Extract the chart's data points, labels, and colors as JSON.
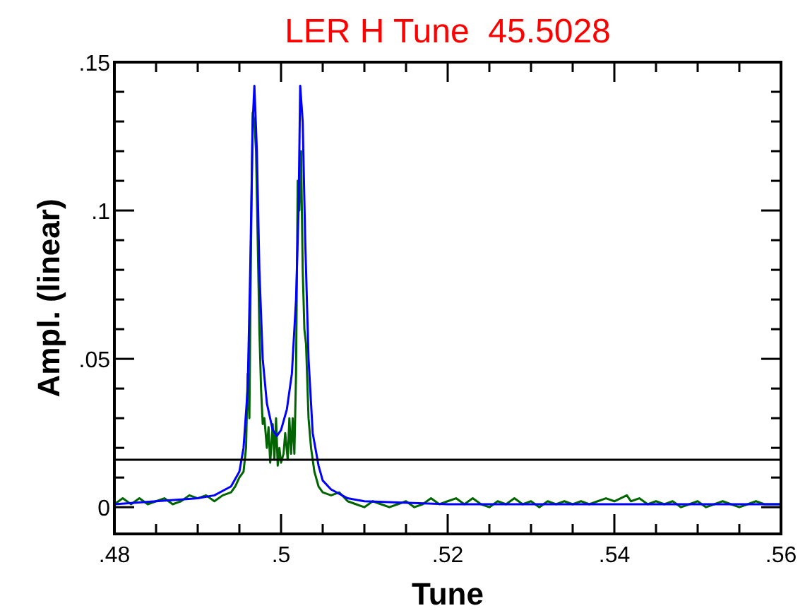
{
  "chart_data": {
    "type": "line",
    "title": "LER H Tune  45.5028",
    "xlabel": "Tune",
    "ylabel": "Ampl. (linear)",
    "xlim": [
      0.48,
      0.56
    ],
    "ylim": [
      -0.009,
      0.15
    ],
    "xticks": [
      {
        "value": 0.48,
        "label": ".48"
      },
      {
        "value": 0.485,
        "label": null
      },
      {
        "value": 0.49,
        "label": null
      },
      {
        "value": 0.495,
        "label": null
      },
      {
        "value": 0.5,
        "label": ".5"
      },
      {
        "value": 0.505,
        "label": null
      },
      {
        "value": 0.51,
        "label": null
      },
      {
        "value": 0.515,
        "label": null
      },
      {
        "value": 0.52,
        "label": ".52"
      },
      {
        "value": 0.525,
        "label": null
      },
      {
        "value": 0.53,
        "label": null
      },
      {
        "value": 0.535,
        "label": null
      },
      {
        "value": 0.54,
        "label": ".54"
      },
      {
        "value": 0.545,
        "label": null
      },
      {
        "value": 0.55,
        "label": null
      },
      {
        "value": 0.555,
        "label": null
      },
      {
        "value": 0.56,
        "label": ".56"
      }
    ],
    "yticks": [
      0,
      {
        "value": 0.01,
        "label": null
      },
      {
        "value": 0.02,
        "label": null
      },
      {
        "value": 0.03,
        "label": null
      },
      {
        "value": 0.04,
        "label": null
      },
      {
        "value": 0.05,
        "label": ".05"
      },
      {
        "value": 0.06,
        "label": null
      },
      {
        "value": 0.07,
        "label": null
      },
      {
        "value": 0.08,
        "label": null
      },
      {
        "value": 0.09,
        "label": null
      },
      {
        "value": 0.1,
        "label": ".1"
      },
      {
        "value": 0.11,
        "label": null
      },
      {
        "value": 0.12,
        "label": null
      },
      {
        "value": 0.13,
        "label": null
      },
      {
        "value": 0.14,
        "label": null
      },
      {
        "value": 0.15,
        "label": ".15"
      }
    ],
    "grid": false,
    "line_style": "solid",
    "ref_lines": [
      {
        "axis": "y",
        "value": 0.016,
        "color": "#000000"
      }
    ],
    "series": [
      {
        "color": "#006400",
        "x": [
          0.48,
          0.481,
          0.482,
          0.483,
          0.484,
          0.485,
          0.486,
          0.487,
          0.488,
          0.489,
          0.49,
          0.491,
          0.492,
          0.493,
          0.494,
          0.4945,
          0.495,
          0.4955,
          0.4958,
          0.496,
          0.4962,
          0.4964,
          0.4966,
          0.4968,
          0.497,
          0.4972,
          0.4974,
          0.4976,
          0.4978,
          0.498,
          0.4983,
          0.4985,
          0.4987,
          0.499,
          0.4992,
          0.4994,
          0.4996,
          0.4998,
          0.5,
          0.5003,
          0.5005,
          0.5008,
          0.501,
          0.5012,
          0.5014,
          0.5016,
          0.5018,
          0.502,
          0.5022,
          0.5024,
          0.5026,
          0.5028,
          0.503,
          0.5033,
          0.5036,
          0.504,
          0.5045,
          0.505,
          0.506,
          0.507,
          0.508,
          0.509,
          0.51,
          0.511,
          0.512,
          0.513,
          0.514,
          0.515,
          0.516,
          0.517,
          0.518,
          0.519,
          0.52,
          0.521,
          0.522,
          0.523,
          0.524,
          0.525,
          0.526,
          0.527,
          0.528,
          0.529,
          0.53,
          0.531,
          0.532,
          0.533,
          0.534,
          0.535,
          0.536,
          0.537,
          0.538,
          0.539,
          0.54,
          0.5415,
          0.542,
          0.543,
          0.544,
          0.545,
          0.546,
          0.547,
          0.548,
          0.549,
          0.55,
          0.551,
          0.552,
          0.553,
          0.554,
          0.555,
          0.556,
          0.557,
          0.558,
          0.559,
          0.56
        ],
        "values": [
          0.001,
          0.003,
          0.001,
          0.003,
          0.001,
          0.002,
          0.003,
          0.001,
          0.002,
          0.004,
          0.003,
          0.004,
          0.002,
          0.004,
          0.005,
          0.007,
          0.01,
          0.012,
          0.02,
          0.045,
          0.03,
          0.09,
          0.133,
          0.13,
          0.12,
          0.09,
          0.06,
          0.04,
          0.028,
          0.03,
          0.02,
          0.027,
          0.015,
          0.028,
          0.016,
          0.03,
          0.014,
          0.02,
          0.015,
          0.018,
          0.025,
          0.016,
          0.03,
          0.018,
          0.03,
          0.018,
          0.045,
          0.11,
          0.1,
          0.12,
          0.08,
          0.06,
          0.055,
          0.03,
          0.02,
          0.012,
          0.007,
          0.005,
          0.004,
          0.005,
          0.002,
          0.001,
          0.0,
          0.002,
          0.001,
          0.0,
          0.001,
          0.002,
          0.0,
          0.001,
          0.003,
          0.001,
          0.002,
          0.003,
          0.001,
          0.003,
          0.001,
          0.0,
          0.002,
          0.001,
          0.003,
          0.001,
          0.002,
          0.0,
          0.002,
          0.001,
          0.002,
          0.001,
          0.002,
          0.001,
          0.002,
          0.003,
          0.002,
          0.004,
          0.002,
          0.003,
          0.001,
          0.002,
          0.001,
          0.002,
          0.0,
          0.001,
          0.002,
          0.0,
          0.001,
          0.002,
          0.001,
          0.0,
          0.001,
          0.002,
          0.001,
          0.001,
          0.001
        ]
      },
      {
        "color": "#0000ff",
        "x": [
          0.48,
          0.485,
          0.49,
          0.492,
          0.494,
          0.495,
          0.4955,
          0.496,
          0.4963,
          0.4966,
          0.4968,
          0.4971,
          0.4974,
          0.4978,
          0.4983,
          0.499,
          0.4995,
          0.5,
          0.5007,
          0.5013,
          0.5018,
          0.5021,
          0.5023,
          0.5026,
          0.5029,
          0.5033,
          0.5038,
          0.5045,
          0.505,
          0.506,
          0.508,
          0.51,
          0.52,
          0.54,
          0.56
        ],
        "values": [
          0.001,
          0.002,
          0.003,
          0.004,
          0.007,
          0.012,
          0.02,
          0.04,
          0.08,
          0.13,
          0.142,
          0.12,
          0.08,
          0.05,
          0.035,
          0.026,
          0.024,
          0.026,
          0.033,
          0.045,
          0.07,
          0.1,
          0.142,
          0.13,
          0.09,
          0.05,
          0.025,
          0.014,
          0.009,
          0.006,
          0.003,
          0.002,
          0.001,
          0.001,
          0.001
        ]
      }
    ]
  }
}
